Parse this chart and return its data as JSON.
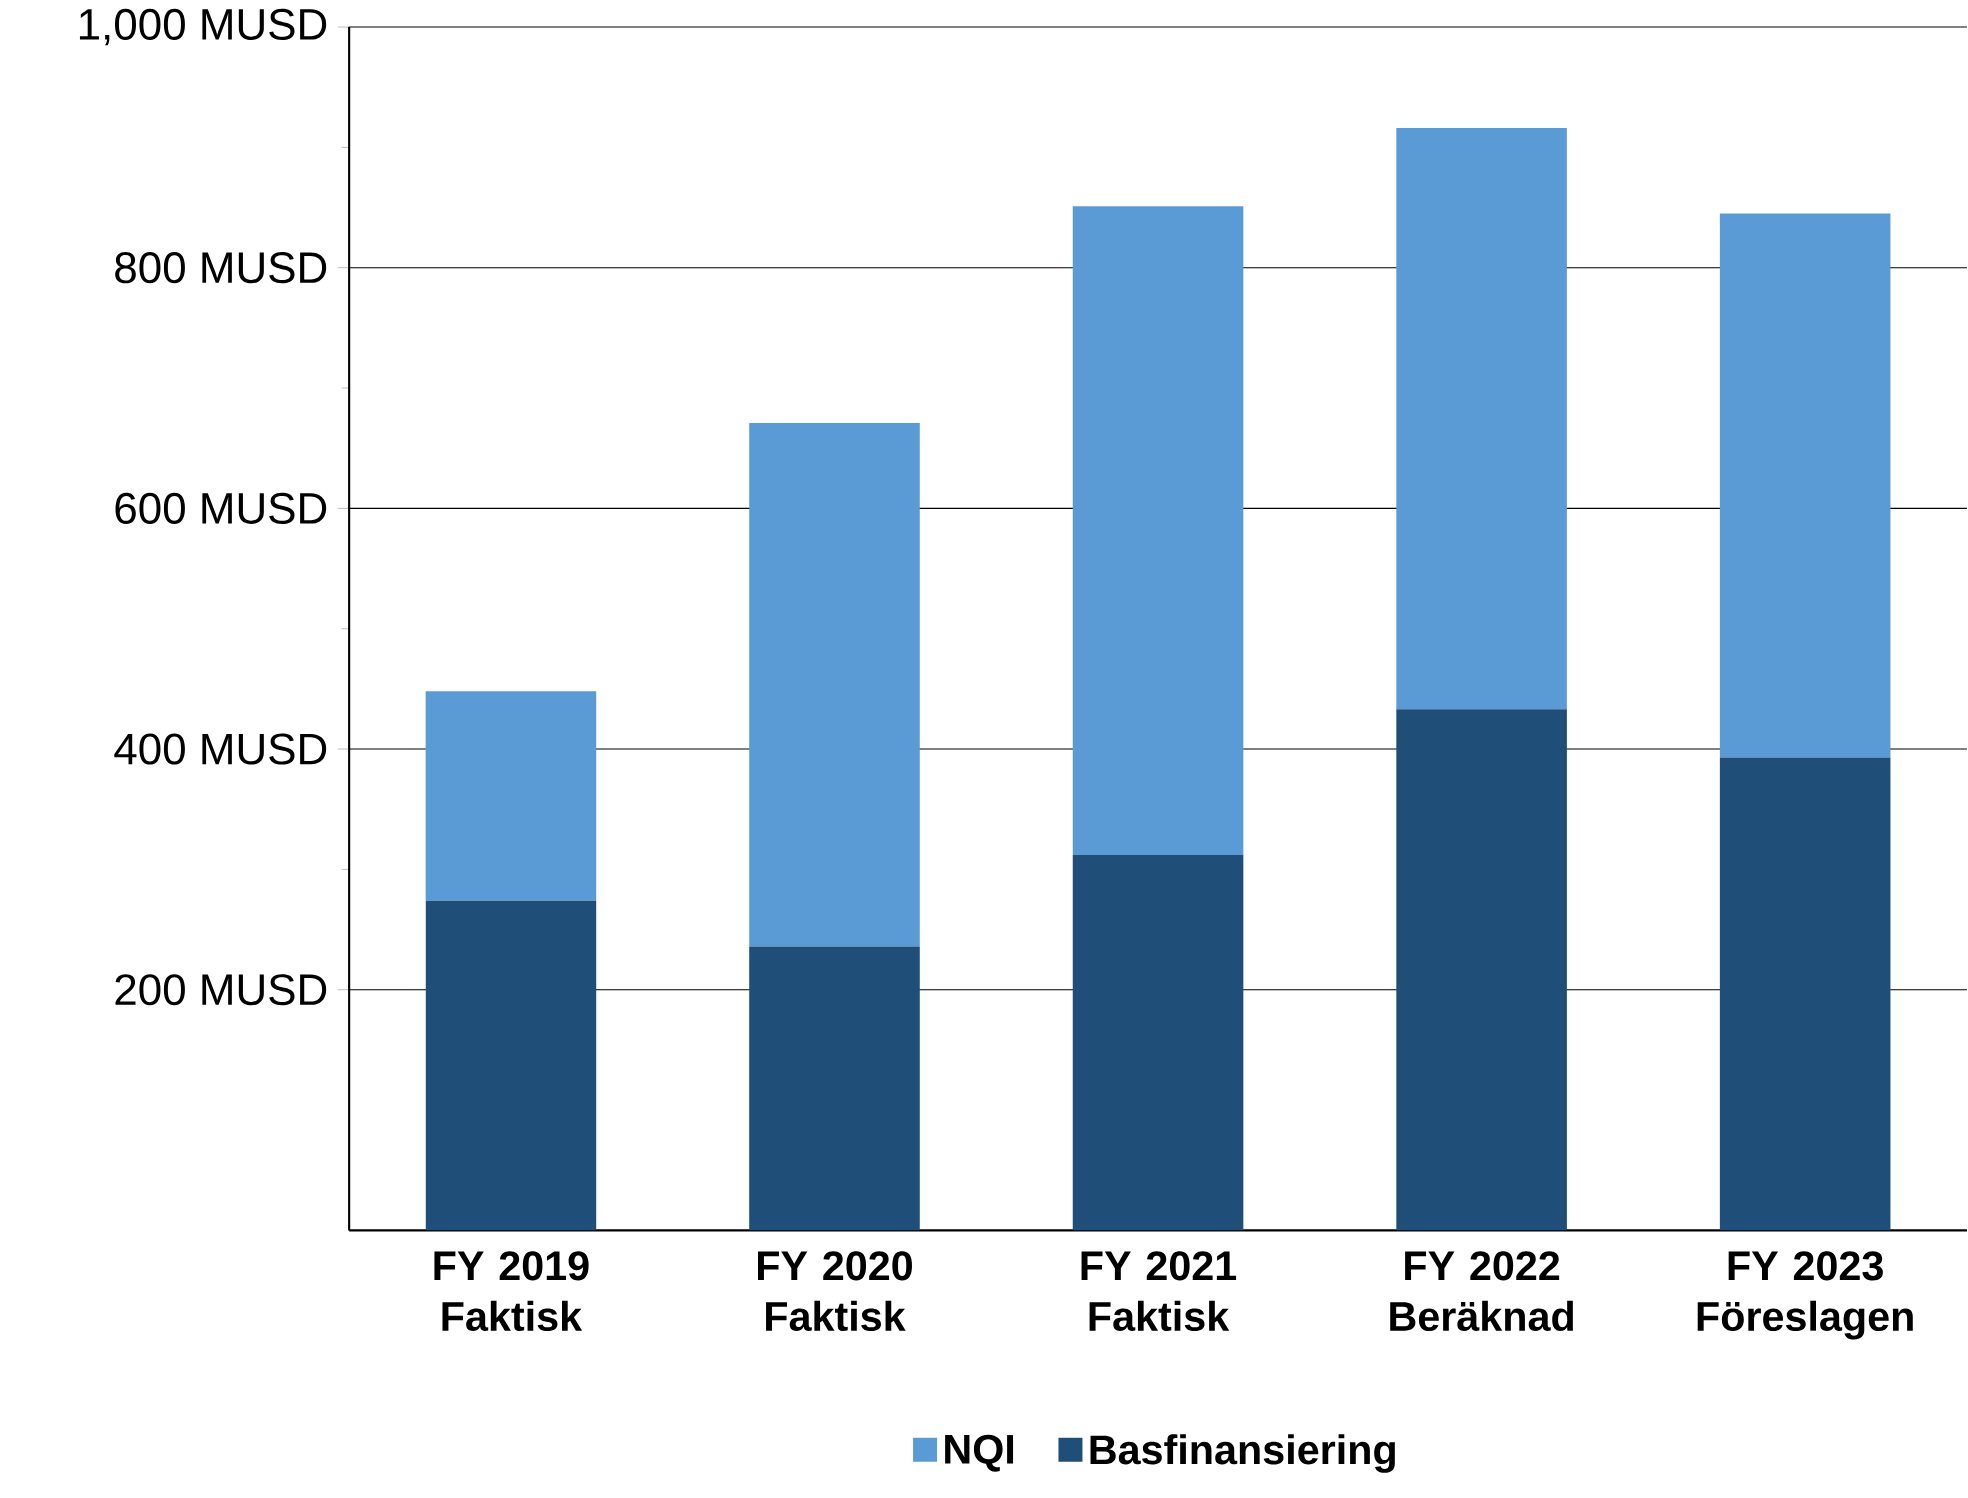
{
  "chart_data": {
    "type": "bar",
    "stacked": true,
    "categories": [
      "FY 2019 Faktisk",
      "FY 2020 Faktisk",
      "FY 2021 Faktisk",
      "FY 2022 Beräknad",
      "FY 2023 Föreslagen"
    ],
    "series": [
      {
        "name": "Basfinansiering",
        "color": "#1f4e79",
        "values": [
          274,
          236,
          312,
          433,
          393
        ]
      },
      {
        "name": "NQI",
        "color": "#5b9bd5",
        "values": [
          174,
          435,
          539,
          483,
          452
        ]
      }
    ],
    "ylim": [
      0,
      1000
    ],
    "yticks": [
      {
        "value": 200,
        "label": "200 MUSD"
      },
      {
        "value": 400,
        "label": "400 MUSD"
      },
      {
        "value": 600,
        "label": "600 MUSD"
      },
      {
        "value": 800,
        "label": "800 MUSD"
      },
      {
        "value": 1000,
        "label": "1,000 MUSD"
      }
    ],
    "grid": "y",
    "legend": "bottom"
  }
}
